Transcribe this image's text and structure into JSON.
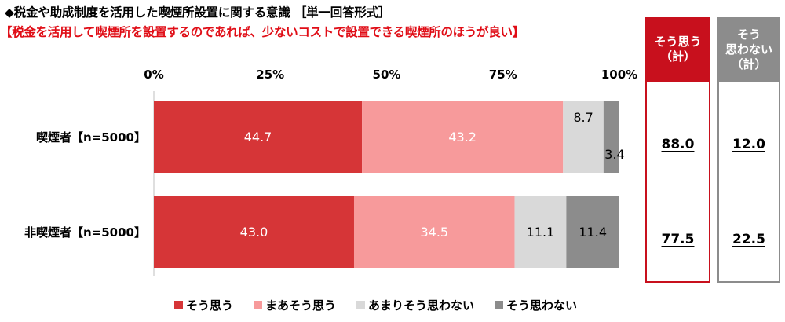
{
  "title": "◆税金や助成制度を活用した喫煙所設置に関する意識 ［単一回答形式］",
  "subtitle": "【税金を活用して喫煙所を設置するのであれば、少ないコストで設置できる喫煙所のほうが良い】",
  "colors": {
    "agree": "#d63537",
    "somewhat_agree": "#f79a9b",
    "somewhat_disagree": "#d9d9d9",
    "disagree": "#8c8c8c",
    "summary_agree": "#c8101d",
    "summary_disagree": "#8c8c8c"
  },
  "chart_data": {
    "type": "bar",
    "orientation": "horizontal",
    "stacked": true,
    "xlim": [
      0,
      100
    ],
    "x_ticks": [
      "0%",
      "25%",
      "50%",
      "75%",
      "100%"
    ],
    "categories": [
      "喫煙者【n=5000】",
      "非喫煙者【n=5000】"
    ],
    "series": [
      {
        "name": "そう思う",
        "values": [
          44.7,
          43.0
        ]
      },
      {
        "name": "まあそう思う",
        "values": [
          43.2,
          34.5
        ]
      },
      {
        "name": "あまりそう思わない",
        "values": [
          8.7,
          11.1
        ]
      },
      {
        "name": "そう思わない",
        "values": [
          3.4,
          11.4
        ]
      }
    ],
    "legend_position": "bottom",
    "summary_columns": [
      {
        "label_lines": [
          "そう思う",
          "（計）"
        ],
        "values": [
          "88.0",
          "77.5"
        ]
      },
      {
        "label_lines": [
          "そう",
          "思わない",
          "（計）"
        ],
        "values": [
          "12.0",
          "22.5"
        ]
      }
    ]
  }
}
